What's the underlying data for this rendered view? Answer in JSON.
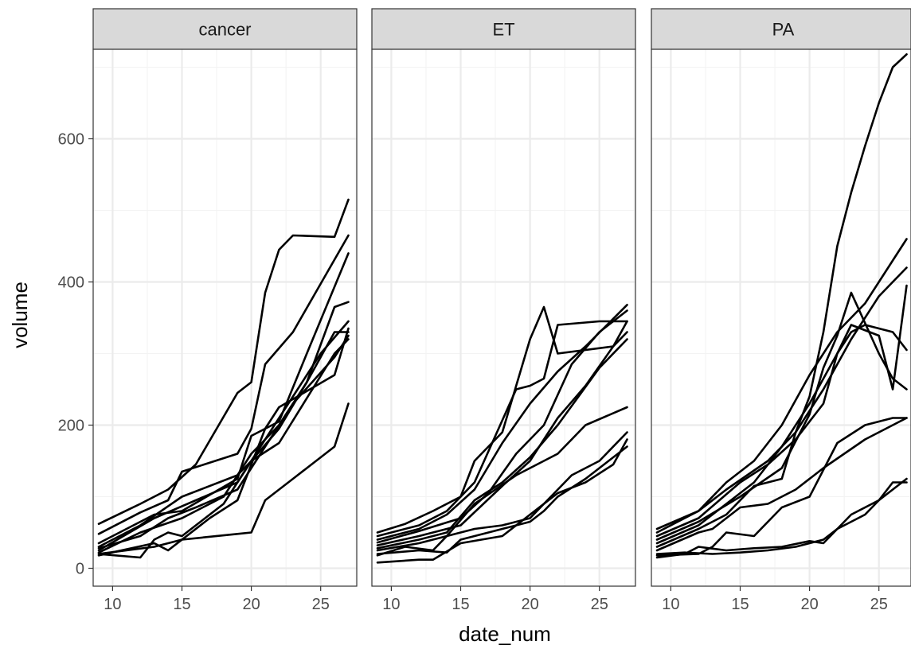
{
  "chart_data": {
    "type": "line",
    "facet_variable": "treatment",
    "xlabel": "date_num",
    "ylabel": "volume",
    "xlim": [
      8.6,
      27.6
    ],
    "ylim": [
      -25,
      725
    ],
    "x_ticks": [
      10,
      15,
      20,
      25
    ],
    "y_ticks": [
      0,
      200,
      400,
      600
    ],
    "grid": true,
    "panels": [
      {
        "label": "cancer",
        "series": [
          {
            "x": [
              9,
              12,
              14,
              16,
              19,
              20,
              21,
              22,
              23,
              26,
              27
            ],
            "values": [
              62,
              90,
              110,
              145,
              245,
              260,
              385,
              445,
              465,
              463,
              515
            ]
          },
          {
            "x": [
              9,
              12,
              14,
              15,
              19,
              20,
              21,
              23,
              27
            ],
            "values": [
              48,
              78,
              95,
              135,
              160,
              195,
              285,
              330,
              465
            ]
          },
          {
            "x": [
              9,
              13,
              15,
              19,
              20,
              22,
              24,
              27
            ],
            "values": [
              35,
              75,
              80,
              125,
              185,
              205,
              300,
              440
            ]
          },
          {
            "x": [
              9,
              12,
              15,
              19,
              20,
              22,
              24,
              26,
              27
            ],
            "values": [
              30,
              60,
              100,
              130,
              150,
              195,
              260,
              365,
              372
            ]
          },
          {
            "x": [
              9,
              13,
              16,
              19,
              21,
              23,
              25,
              27
            ],
            "values": [
              25,
              70,
              95,
              120,
              180,
              240,
              300,
              345
            ]
          },
          {
            "x": [
              9,
              12,
              15,
              18,
              20,
              22,
              24,
              26,
              27
            ],
            "values": [
              22,
              50,
              70,
              100,
              160,
              200,
              260,
              330,
              330
            ]
          },
          {
            "x": [
              9,
              12,
              14,
              16,
              19,
              21,
              23,
              26,
              27
            ],
            "values": [
              28,
              45,
              70,
              85,
              110,
              170,
              230,
              295,
              325
            ]
          },
          {
            "x": [
              9,
              13,
              14,
              17,
              19,
              21,
              22,
              26,
              27
            ],
            "values": [
              18,
              35,
              25,
              70,
              95,
              195,
              225,
              270,
              335
            ]
          },
          {
            "x": [
              9,
              12,
              13,
              14,
              15,
              18,
              20,
              22,
              26,
              27
            ],
            "values": [
              20,
              15,
              40,
              50,
              45,
              90,
              150,
              175,
              300,
              320
            ]
          },
          {
            "x": [
              9,
              13,
              15,
              19,
              20,
              21,
              23,
              26,
              27
            ],
            "values": [
              20,
              30,
              40,
              48,
              50,
              95,
              125,
              170,
              230
            ]
          }
        ]
      },
      {
        "label": "ET",
        "series": [
          {
            "x": [
              9,
              11,
              13,
              15,
              16,
              18,
              19,
              20,
              21,
              22,
              26,
              27
            ],
            "values": [
              50,
              62,
              80,
              100,
              150,
              190,
              255,
              320,
              365,
              300,
              310,
              345
            ]
          },
          {
            "x": [
              9,
              12,
              14,
              16,
              19,
              20,
              21,
              22,
              25,
              27
            ],
            "values": [
              45,
              60,
              80,
              120,
              250,
              255,
              265,
              340,
              345,
              345
            ]
          },
          {
            "x": [
              9,
              12,
              14,
              16,
              18,
              20,
              22,
              24,
              27
            ],
            "values": [
              40,
              55,
              75,
              110,
              175,
              230,
              275,
              310,
              368
            ]
          },
          {
            "x": [
              9,
              12,
              15,
              17,
              19,
              21,
              23,
              25,
              27
            ],
            "values": [
              36,
              52,
              70,
              105,
              160,
              200,
              285,
              330,
              360
            ]
          },
          {
            "x": [
              9,
              12,
              15,
              18,
              20,
              22,
              24,
              26,
              27
            ],
            "values": [
              32,
              45,
              60,
              115,
              150,
              210,
              255,
              310,
              330
            ]
          },
          {
            "x": [
              9,
              12,
              14,
              16,
              18,
              20,
              22,
              25,
              27
            ],
            "values": [
              28,
              40,
              50,
              95,
              120,
              155,
              200,
              280,
              320
            ]
          },
          {
            "x": [
              9,
              12,
              14,
              16,
              19,
              20,
              22,
              24,
              27
            ],
            "values": [
              25,
              35,
              45,
              90,
              130,
              140,
              160,
              200,
              225
            ]
          },
          {
            "x": [
              9,
              11,
              13,
              14,
              16,
              18,
              20,
              21,
              23,
              25,
              27
            ],
            "values": [
              18,
              30,
              25,
              45,
              55,
              60,
              70,
              90,
              130,
              150,
              190
            ]
          },
          {
            "x": [
              9,
              12,
              14,
              15,
              18,
              20,
              21,
              22,
              24,
              27
            ],
            "values": [
              20,
              25,
              22,
              40,
              55,
              65,
              80,
              100,
              125,
              170
            ]
          },
          {
            "x": [
              9,
              12,
              13,
              15,
              18,
              20,
              22,
              24,
              26,
              27
            ],
            "values": [
              8,
              12,
              12,
              35,
              45,
              75,
              105,
              120,
              145,
              180
            ]
          }
        ]
      },
      {
        "label": "PA",
        "series": [
          {
            "x": [
              9,
              12,
              14,
              17,
              19,
              20,
              21,
              22,
              23,
              24,
              25,
              26,
              27
            ],
            "values": [
              55,
              80,
              110,
              150,
              190,
              240,
              330,
              450,
              525,
              590,
              650,
              700,
              718
            ]
          },
          {
            "x": [
              9,
              12,
              14,
              16,
              18,
              20,
              22,
              24,
              26,
              27
            ],
            "values": [
              50,
              80,
              120,
              150,
              200,
              270,
              330,
              370,
              430,
              460
            ]
          },
          {
            "x": [
              9,
              12,
              15,
              17,
              19,
              21,
              22,
              23,
              25,
              26,
              27
            ],
            "values": [
              45,
              70,
              120,
              145,
              180,
              230,
              300,
              340,
              325,
              250,
              395
            ]
          },
          {
            "x": [
              9,
              12,
              15,
              18,
              20,
              21,
              22,
              23,
              25,
              26,
              27
            ],
            "values": [
              40,
              65,
              100,
              140,
              215,
              280,
              325,
              385,
              300,
              265,
              250
            ]
          },
          {
            "x": [
              9,
              12,
              14,
              16,
              18,
              20,
              22,
              23,
              24,
              26,
              27
            ],
            "values": [
              35,
              60,
              90,
              120,
              170,
              230,
              300,
              330,
              340,
              330,
              305
            ]
          },
          {
            "x": [
              9,
              12,
              14,
              16,
              18,
              19,
              21,
              23,
              25,
              27
            ],
            "values": [
              30,
              55,
              75,
              115,
              125,
              190,
              250,
              320,
              380,
              420
            ]
          },
          {
            "x": [
              9,
              12,
              13,
              15,
              17,
              19,
              21,
              24,
              27
            ],
            "values": [
              25,
              50,
              55,
              85,
              90,
              110,
              140,
              180,
              210
            ]
          },
          {
            "x": [
              9,
              12,
              13,
              14,
              16,
              18,
              20,
              22,
              24,
              26,
              27
            ],
            "values": [
              18,
              20,
              30,
              50,
              45,
              85,
              100,
              175,
              200,
              210,
              210
            ]
          },
          {
            "x": [
              9,
              11,
              13,
              15,
              17,
              19,
              21,
              22,
              23,
              24,
              25,
              26,
              27
            ],
            "values": [
              20,
              22,
              20,
              22,
              25,
              30,
              40,
              55,
              65,
              75,
              95,
              120,
              120
            ]
          },
          {
            "x": [
              9,
              11,
              12,
              14,
              16,
              18,
              20,
              21,
              23,
              25,
              27
            ],
            "values": [
              15,
              20,
              30,
              25,
              28,
              30,
              38,
              35,
              75,
              95,
              125
            ]
          }
        ]
      }
    ]
  }
}
